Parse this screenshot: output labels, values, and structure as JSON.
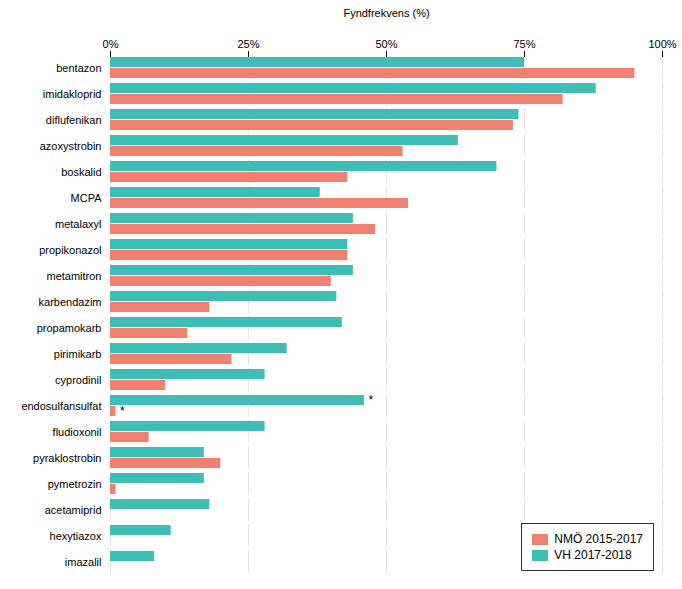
{
  "chart_data": {
    "type": "bar",
    "orientation": "horizontal",
    "title": "Fyndfrekvens (%)",
    "categories": [
      "bentazon",
      "imidakloprid",
      "diflufenikan",
      "azoxystrobin",
      "boskalid",
      "MCPA",
      "metalaxyl",
      "propikonazol",
      "metamitron",
      "karbendazim",
      "propamokarb",
      "pirimikarb",
      "cyprodinil",
      "endosulfansulfat",
      "fludioxonil",
      "pyraklostrobin",
      "pymetrozin",
      "acetamiprid",
      "hexytiazox",
      "imazalil"
    ],
    "series": [
      {
        "name": "NMÖ 2015-2017",
        "color": "#F08070",
        "values": [
          95,
          82,
          73,
          53,
          43,
          54,
          48,
          43,
          40,
          18,
          14,
          22,
          10,
          1,
          7,
          20,
          1,
          0,
          0,
          0
        ]
      },
      {
        "name": "VH 2017-2018",
        "color": "#3DBFB8",
        "values": [
          75,
          88,
          74,
          63,
          70,
          38,
          44,
          43,
          44,
          41,
          42,
          32,
          28,
          46,
          28,
          17,
          17,
          18,
          11,
          8
        ]
      }
    ],
    "annotations": [
      {
        "text": "*",
        "category": "endosulfansulfat",
        "series": "NMÖ 2015-2017"
      },
      {
        "text": "*",
        "category": "endosulfansulfat",
        "series": "VH 2017-2018"
      }
    ],
    "xlim": [
      0,
      100
    ],
    "xticks": [
      {
        "value": 0,
        "label": "0%"
      },
      {
        "value": 25,
        "label": "25%"
      },
      {
        "value": 50,
        "label": "50%"
      },
      {
        "value": 75,
        "label": "75%"
      },
      {
        "value": 100,
        "label": "100%"
      }
    ],
    "grid": true,
    "legend": "lower right"
  }
}
